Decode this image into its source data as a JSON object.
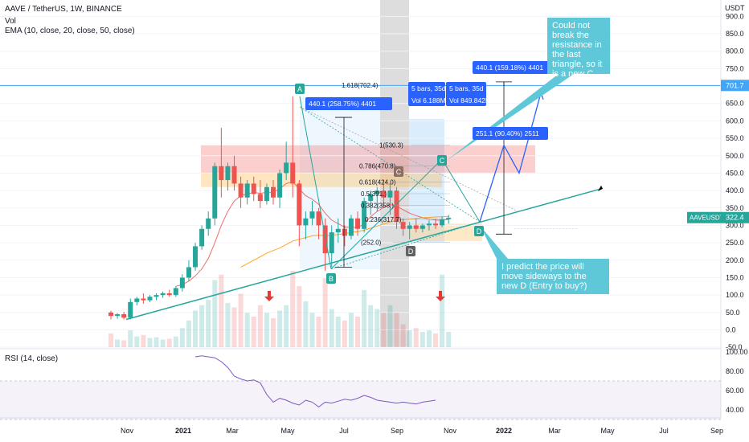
{
  "header": {
    "symbol_line": "AAVE / TetherUS, 1W, BINANCE",
    "volume_label": "Vol",
    "ema_label": "EMA (10, close, 20, close, 50, close)",
    "rsi_label": "RSI (14, close)",
    "currency": "USDT"
  },
  "colors": {
    "up": "#26a69a",
    "down": "#ef5350",
    "ema_fast": "#ef5350",
    "ema_slow": "#ff9800",
    "rsi_line": "#7e57c2",
    "annotation_blue": "#2962ff",
    "callout_teal": "#5ec8d8",
    "trendline": "#26a69a"
  },
  "annotations": {
    "point_a": "A",
    "point_b": "B",
    "point_c": "C",
    "point_c_gray": "C",
    "point_d": "D",
    "point_d_gray": "D",
    "measure_ab": "440.1 (258.75%) 4401",
    "measure_right": "440.1 (159.18%) 4401",
    "measure_dc": "251.1 (90.40%) 2511",
    "bars_left_1": "5 bars, 35d",
    "bars_left_2": "Vol 6.188M",
    "bars_right_1": "5 bars, 35d",
    "bars_right_2": "Vol 849.842K",
    "callout_top": "Could not break the resistance in the last triangle, so it is a new C",
    "callout_bottom": "I predict the price will move sideways to the new D (Entry to buy?)",
    "price_line_label": "701.7",
    "last_price_symbol": "AAVEUSDT",
    "last_price": "322.4"
  },
  "chart_data": {
    "type": "candlestick",
    "symbol": "AAVE / TetherUS",
    "interval": "1W",
    "exchange": "BINANCE",
    "y_axis": {
      "ticks": [
        "900.0",
        "850.0",
        "800.0",
        "750.0",
        "700.0",
        "650.0",
        "600.0",
        "550.0",
        "500.0",
        "450.0",
        "400.0",
        "350.0",
        "300.0",
        "250.0",
        "200.0",
        "150.0",
        "100.0",
        "50.0",
        "0.0",
        "-50.0"
      ],
      "ylim": [
        -50,
        900
      ]
    },
    "rsi_axis": {
      "ticks": [
        "100.00",
        "80.00",
        "60.00",
        "40.00"
      ],
      "band": [
        30,
        70
      ]
    },
    "x_ticks": [
      "Nov",
      "2021",
      "Mar",
      "May",
      "Jul",
      "Sep",
      "Nov",
      "2022",
      "Mar",
      "May",
      "Jul",
      "Sep"
    ],
    "candles": [
      [
        50,
        55,
        30,
        40
      ],
      [
        40,
        48,
        32,
        45
      ],
      [
        45,
        52,
        30,
        35
      ],
      [
        35,
        90,
        30,
        80
      ],
      [
        80,
        95,
        70,
        90
      ],
      [
        90,
        105,
        75,
        85
      ],
      [
        85,
        100,
        80,
        95
      ],
      [
        95,
        105,
        85,
        100
      ],
      [
        100,
        110,
        92,
        105
      ],
      [
        105,
        115,
        95,
        100
      ],
      [
        100,
        125,
        95,
        120
      ],
      [
        120,
        160,
        110,
        150
      ],
      [
        150,
        200,
        140,
        180
      ],
      [
        180,
        250,
        170,
        240
      ],
      [
        240,
        300,
        230,
        290
      ],
      [
        290,
        340,
        270,
        320
      ],
      [
        320,
        480,
        300,
        470
      ],
      [
        470,
        580,
        380,
        430
      ],
      [
        430,
        480,
        400,
        470
      ],
      [
        470,
        500,
        400,
        420
      ],
      [
        420,
        440,
        350,
        380
      ],
      [
        380,
        430,
        360,
        420
      ],
      [
        420,
        440,
        370,
        390
      ],
      [
        390,
        430,
        350,
        370
      ],
      [
        370,
        420,
        360,
        410
      ],
      [
        410,
        430,
        360,
        380
      ],
      [
        380,
        460,
        350,
        450
      ],
      [
        450,
        540,
        430,
        480
      ],
      [
        480,
        670,
        380,
        420
      ],
      [
        420,
        430,
        240,
        300
      ],
      [
        300,
        340,
        260,
        320
      ],
      [
        320,
        370,
        300,
        340
      ],
      [
        340,
        350,
        260,
        300
      ],
      [
        300,
        320,
        170,
        220
      ],
      [
        220,
        300,
        180,
        280
      ],
      [
        280,
        320,
        250,
        290
      ],
      [
        290,
        300,
        240,
        270
      ],
      [
        270,
        330,
        260,
        320
      ],
      [
        320,
        340,
        270,
        290
      ],
      [
        290,
        380,
        280,
        370
      ],
      [
        370,
        400,
        330,
        390
      ],
      [
        390,
        410,
        340,
        400
      ],
      [
        400,
        430,
        350,
        380
      ],
      [
        380,
        420,
        330,
        400
      ],
      [
        400,
        410,
        290,
        310
      ],
      [
        310,
        320,
        270,
        290
      ],
      [
        290,
        310,
        260,
        300
      ],
      [
        300,
        320,
        280,
        290
      ],
      [
        290,
        305,
        280,
        300
      ],
      [
        300,
        315,
        285,
        305
      ],
      [
        305,
        320,
        290,
        300
      ],
      [
        300,
        325,
        295,
        318
      ],
      [
        318,
        330,
        305,
        322
      ]
    ],
    "volume": [
      18,
      10,
      9,
      22,
      14,
      16,
      12,
      13,
      10,
      11,
      14,
      25,
      35,
      48,
      55,
      62,
      88,
      95,
      58,
      52,
      70,
      45,
      40,
      55,
      45,
      38,
      48,
      55,
      100,
      80,
      60,
      45,
      40,
      90,
      50,
      40,
      35,
      45,
      40,
      75,
      55,
      50,
      45,
      55,
      45,
      30,
      22,
      25,
      20,
      22,
      18,
      95,
      20
    ],
    "ema_10": [
      null,
      null,
      null,
      null,
      null,
      null,
      null,
      null,
      null,
      null,
      125,
      130,
      140,
      155,
      175,
      205,
      250,
      300,
      340,
      370,
      385,
      390,
      395,
      392,
      395,
      395,
      405,
      420,
      425,
      405,
      385,
      375,
      360,
      335,
      315,
      305,
      295,
      295,
      293,
      305,
      325,
      340,
      352,
      360,
      355,
      345,
      335,
      328,
      322,
      318,
      315,
      315,
      317
    ],
    "ema_50": [
      null,
      null,
      null,
      null,
      null,
      null,
      null,
      null,
      null,
      null,
      null,
      null,
      null,
      null,
      null,
      null,
      null,
      null,
      null,
      null,
      180,
      190,
      200,
      210,
      220,
      228,
      235,
      245,
      255,
      260,
      265,
      270,
      272,
      270,
      272,
      274,
      276,
      280,
      282,
      286,
      292,
      298,
      304,
      310,
      314,
      316,
      318,
      320,
      322,
      323,
      324,
      325,
      326
    ],
    "rsi": [
      95,
      96,
      95,
      94,
      90,
      84,
      75,
      72,
      70,
      71,
      68,
      56,
      48,
      52,
      50,
      47,
      45,
      50,
      48,
      43,
      48,
      47,
      49,
      51,
      50,
      52,
      55,
      53,
      50,
      49,
      48,
      47,
      48,
      47,
      46,
      48,
      49,
      50
    ],
    "fibonacci": [
      {
        "label": "1.618(702.4)",
        "value": 702.4
      },
      {
        "label": "1(530.3)",
        "value": 530.3
      },
      {
        "label": "0.786(470.8)",
        "value": 470.8
      },
      {
        "label": "0.618(424.0)",
        "value": 424.0
      },
      {
        "label": "0.5(391.)",
        "value": 391
      },
      {
        "label": "0.382(358.)",
        "value": 358
      },
      {
        "label": "0.236(317.7)",
        "value": 317.7
      },
      {
        "label": "(252.0)",
        "value": 252.0
      }
    ]
  }
}
